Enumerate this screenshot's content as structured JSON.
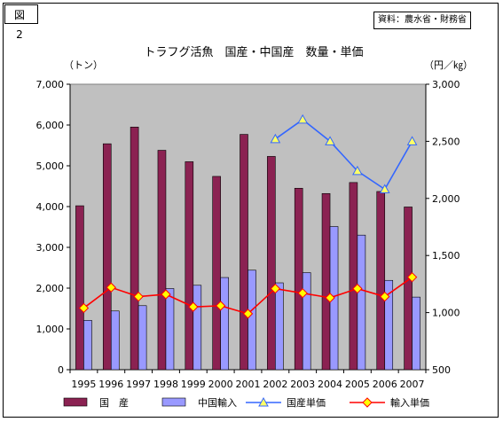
{
  "figure_label": "図　2",
  "source": "資料：農水省・財務省",
  "chart_data": {
    "type": "bar",
    "title": "トラフグ活魚　国産・中国産　数量・単価",
    "y_left_label": "（トン）",
    "y_right_label": "（円／㎏）",
    "categories": [
      "1995",
      "1996",
      "1997",
      "1998",
      "1999",
      "2000",
      "2001",
      "2002",
      "2003",
      "2004",
      "2005",
      "2006",
      "2007"
    ],
    "y_left": {
      "min": 0,
      "max": 7000,
      "ticks": [
        "0",
        "1,000",
        "2,000",
        "3,000",
        "4,000",
        "5,000",
        "6,000",
        "7,000"
      ]
    },
    "y_right": {
      "min": 500,
      "max": 3000,
      "ticks": [
        "500",
        "1,000",
        "1,500",
        "2,000",
        "2,500",
        "3,000"
      ]
    },
    "series": [
      {
        "name": "国　産",
        "kind": "bar",
        "axis": "left",
        "color": "#8B2252",
        "values": [
          4020,
          5540,
          5950,
          5380,
          5100,
          4740,
          5770,
          5230,
          4450,
          4320,
          4590,
          4370,
          3990
        ]
      },
      {
        "name": "中国輸入",
        "kind": "bar",
        "axis": "left",
        "color": "#9999FF",
        "values": [
          1210,
          1440,
          1570,
          1990,
          2070,
          2260,
          2440,
          2130,
          2380,
          3510,
          3300,
          2190,
          1780
        ]
      },
      {
        "name": "国産単価",
        "kind": "line",
        "axis": "right",
        "color": "#3366FF",
        "marker": "triangle",
        "marker_fill": "#FFFF66",
        "values": [
          null,
          null,
          null,
          null,
          null,
          null,
          null,
          2520,
          2690,
          2500,
          2240,
          2080,
          2500
        ]
      },
      {
        "name": "輸入単価",
        "kind": "line",
        "axis": "right",
        "color": "#FF0000",
        "marker": "diamond",
        "marker_fill": "#FFFF00",
        "values": [
          1040,
          1220,
          1140,
          1160,
          1050,
          1060,
          990,
          1210,
          1170,
          1130,
          1210,
          1140,
          1310
        ]
      }
    ],
    "grid": false,
    "plot_background": "#C0C0C0",
    "legend_position": "bottom"
  }
}
